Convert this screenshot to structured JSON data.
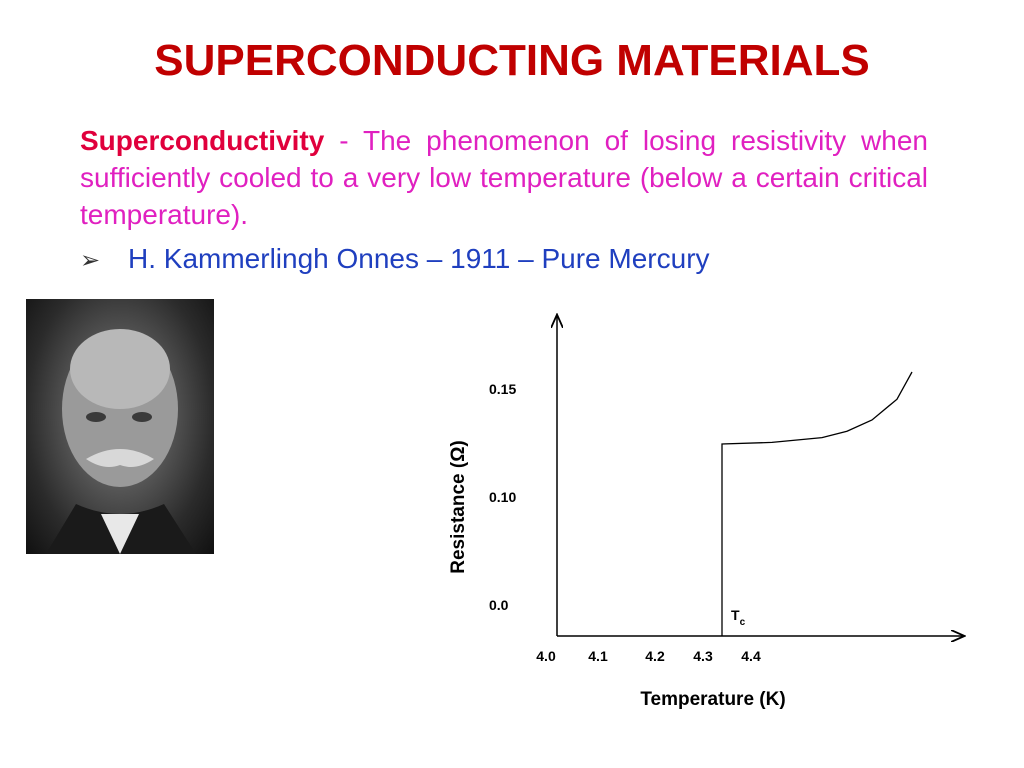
{
  "slide": {
    "title": "SUPERCONDUCTING MATERIALS",
    "definition": {
      "term": "Superconductivity",
      "separator": " - ",
      "text": "The phenomenon of losing resistivity when sufficiently cooled to a very low temperature (below a certain critical temperature)."
    },
    "bullet": {
      "icon": "arrow-bullet-icon",
      "text": "H. Kammerlingh Onnes – 1911 – Pure Mercury"
    },
    "photo": {
      "icon": "portrait-photo"
    }
  },
  "chart_data": {
    "type": "line",
    "title": "",
    "xlabel": "Temperature (K)",
    "ylabel": "Resistance (Ω)",
    "x_ticks": [
      "4.0",
      "4.1",
      "4.2",
      "4.3",
      "4.4"
    ],
    "y_ticks": [
      "0.0",
      "0.10",
      "0.15"
    ],
    "annotation": {
      "text": "T",
      "subscript": "c"
    },
    "series": [
      {
        "points": [
          [
            4.3,
            0.0
          ],
          [
            4.3,
            0.12
          ],
          [
            4.4,
            0.121
          ],
          [
            4.5,
            0.124
          ],
          [
            4.55,
            0.128
          ],
          [
            4.6,
            0.135
          ],
          [
            4.65,
            0.148
          ],
          [
            4.68,
            0.165
          ]
        ]
      }
    ]
  }
}
